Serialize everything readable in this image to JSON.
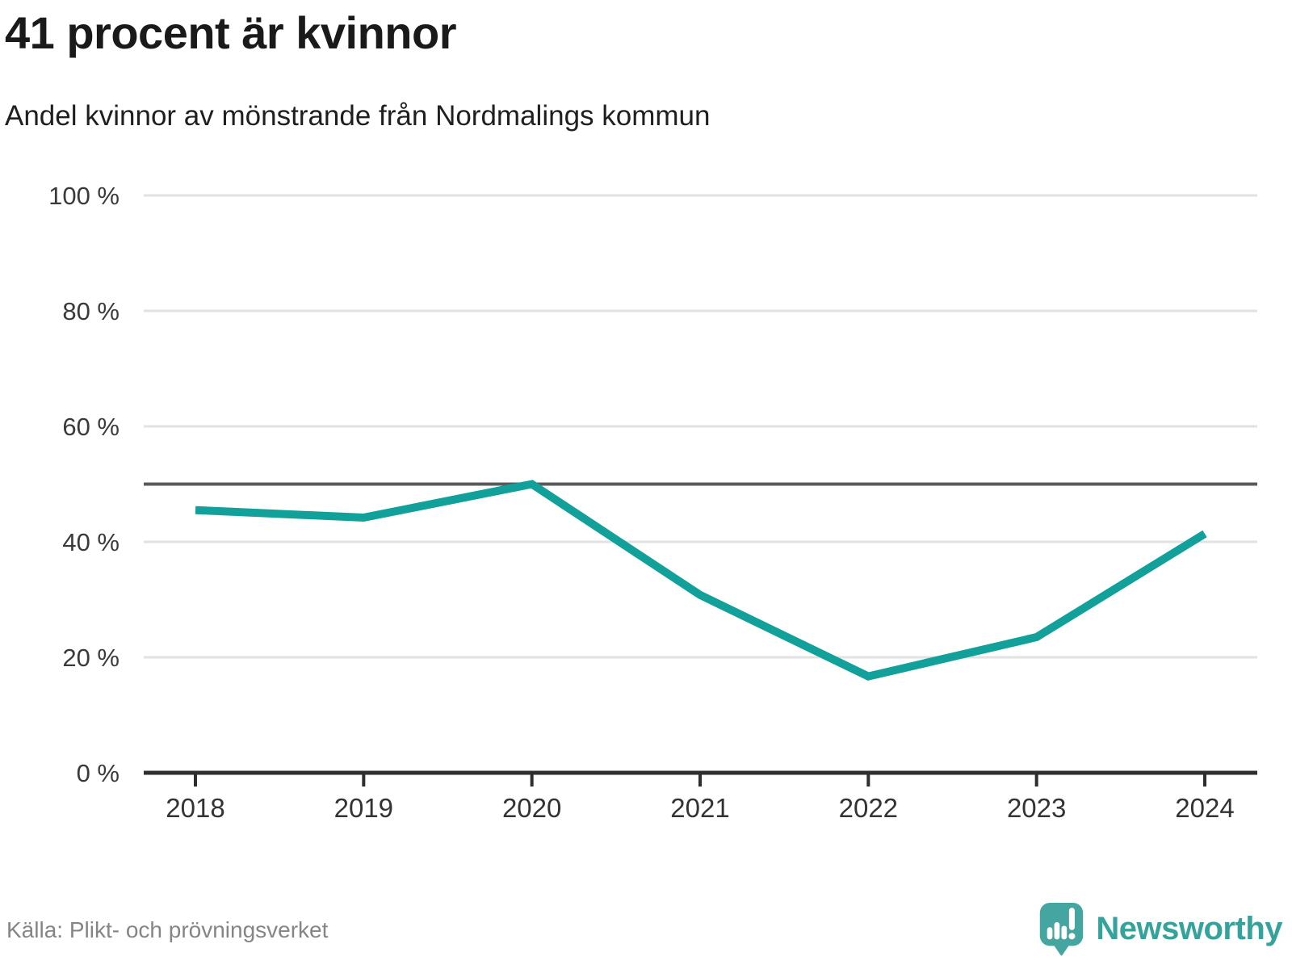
{
  "title": "41 procent är kvinnor",
  "subtitle": "Andel kvinnor av mönstrande från Nordmalings kommun",
  "source": "Källa: Plikt- och prövningsverket",
  "brand": {
    "name": "Newsworthy",
    "icon": "newsworthy-speech-bubble-bar-chart-icon"
  },
  "colors": {
    "background": "#ffffff",
    "line": "#12a09a",
    "reference_line": "#58595b",
    "gridline": "#e2e2e2",
    "axis": "#2e2e2e",
    "tick_text": "#3a3a3a",
    "source_text": "#858585",
    "brand_teal": "#35a39b"
  },
  "chart_data": {
    "type": "line",
    "title": "41 procent är kvinnor",
    "subtitle": "Andel kvinnor av mönstrande från Nordmalings kommun",
    "x": [
      2018,
      2019,
      2020,
      2021,
      2022,
      2023,
      2024
    ],
    "x_tick_labels": [
      "2018",
      "2019",
      "2020",
      "2021",
      "2022",
      "2023",
      "2024"
    ],
    "series": [
      {
        "name": "Andel kvinnor av mönstrande",
        "values": [
          45.5,
          44.2,
          50.0,
          30.8,
          16.7,
          23.5,
          41.4
        ],
        "color": "#12a09a"
      }
    ],
    "xlabel": "",
    "ylabel": "",
    "ylim": [
      0,
      100
    ],
    "y_tick_values": [
      0,
      20,
      40,
      60,
      80,
      100
    ],
    "y_tick_labels": [
      "0 %",
      "20 %",
      "40 %",
      "60 %",
      "80 %",
      "100 %"
    ],
    "reference_line": {
      "value": 50
    },
    "grid": "horizontal",
    "legend": "none"
  }
}
